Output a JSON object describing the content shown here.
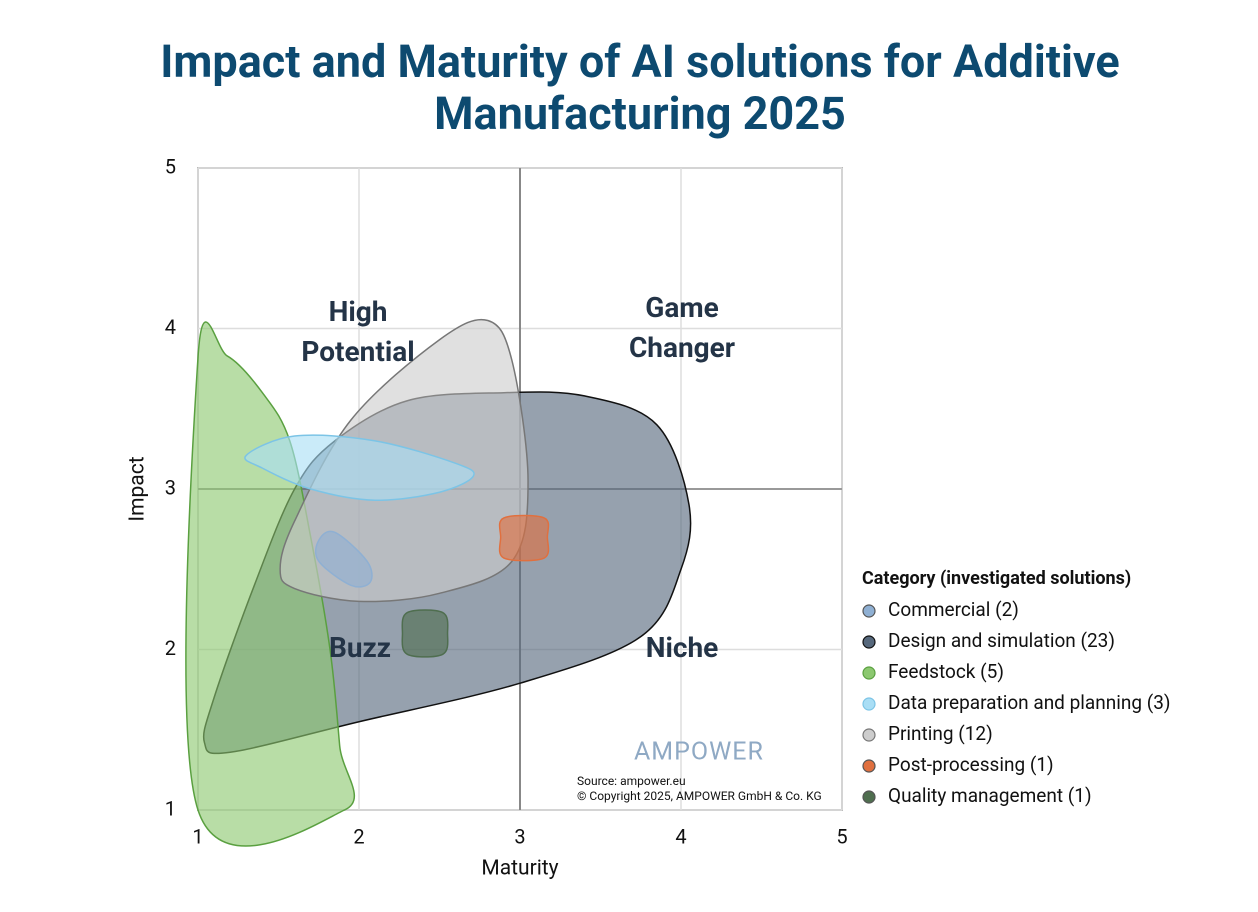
{
  "chart_data": {
    "type": "blob",
    "title": "Impact and Maturity of AI solutions for Additive Manufacturing 2025",
    "x_label": "Maturity",
    "y_label": "Impact",
    "xlim": [
      1,
      5
    ],
    "ylim": [
      1,
      5
    ],
    "xticks": [
      1,
      2,
      3,
      4,
      5
    ],
    "yticks": [
      1,
      2,
      3,
      4,
      5
    ],
    "grid": true,
    "divider": {
      "x": 3,
      "y": 3
    },
    "quadrant_labels": [
      "High Potential",
      "Game Changer",
      "Buzz",
      "Niche"
    ],
    "legend_title": "Category (investigated solutions)",
    "legend_position": "right",
    "series": [
      {
        "name": "Commercial (2)",
        "color": "#8fb0d3",
        "x": [
          1.75,
          1.85,
          2.05,
          2.07,
          1.95,
          1.75
        ],
        "y": [
          2.68,
          2.73,
          2.55,
          2.42,
          2.4,
          2.55
        ]
      },
      {
        "name": "Design and simulation (23)",
        "color": "#56687c",
        "x": [
          1.04,
          1.2,
          2.0,
          3.0,
          3.75,
          4.0,
          4.05,
          3.85,
          3.4,
          2.9,
          2.3,
          1.85,
          1.6,
          1.35,
          1.1
        ],
        "y": [
          1.42,
          1.36,
          1.55,
          1.79,
          2.08,
          2.5,
          2.9,
          3.4,
          3.58,
          3.6,
          3.55,
          3.3,
          3.0,
          2.4,
          1.7
        ]
      },
      {
        "name": "Feedstock (5)",
        "color": "#8cc870",
        "x": [
          1,
          1,
          1.18,
          1.4,
          1.57,
          1.7,
          1.82,
          1.88,
          1.91
        ],
        "y": [
          1,
          3.82,
          3.83,
          3.6,
          3.3,
          2.7,
          2.0,
          1.4,
          1.0
        ]
      },
      {
        "name": "Data preparation and planning (3)",
        "color": "#a9def5",
        "x": [
          1.3,
          1.6,
          2.1,
          2.6,
          2.71,
          2.5,
          2.1,
          1.7,
          1.4
        ],
        "y": [
          3.21,
          3.33,
          3.3,
          3.16,
          3.08,
          2.98,
          2.93,
          3.0,
          3.13
        ]
      },
      {
        "name": "Printing (12)",
        "color": "#cdcdcd",
        "x": [
          1.51,
          1.6,
          1.95,
          2.5,
          2.8,
          2.95,
          3.05,
          2.95,
          2.5,
          2.0,
          1.6
        ],
        "y": [
          2.5,
          2.8,
          3.43,
          3.93,
          4.05,
          3.8,
          3.05,
          2.55,
          2.35,
          2.3,
          2.38
        ]
      },
      {
        "name": "Post-processing (1)",
        "color": "#e0703f",
        "x": [
          2.9,
          3.15,
          3.17,
          3.15,
          2.9,
          2.88
        ],
        "y": [
          2.82,
          2.82,
          2.7,
          2.57,
          2.57,
          2.7
        ]
      },
      {
        "name": "Quality management (1)",
        "color": "#4f6e4f",
        "x": [
          2.3,
          2.52,
          2.55,
          2.52,
          2.3,
          2.27
        ],
        "y": [
          2.23,
          2.23,
          2.1,
          1.97,
          1.97,
          2.1
        ]
      }
    ],
    "logo": "AMPOWER",
    "source": "Source: ampower.eu",
    "copyright": "© Copyright 2025, AMPOWER GmbH & Co. KG"
  }
}
